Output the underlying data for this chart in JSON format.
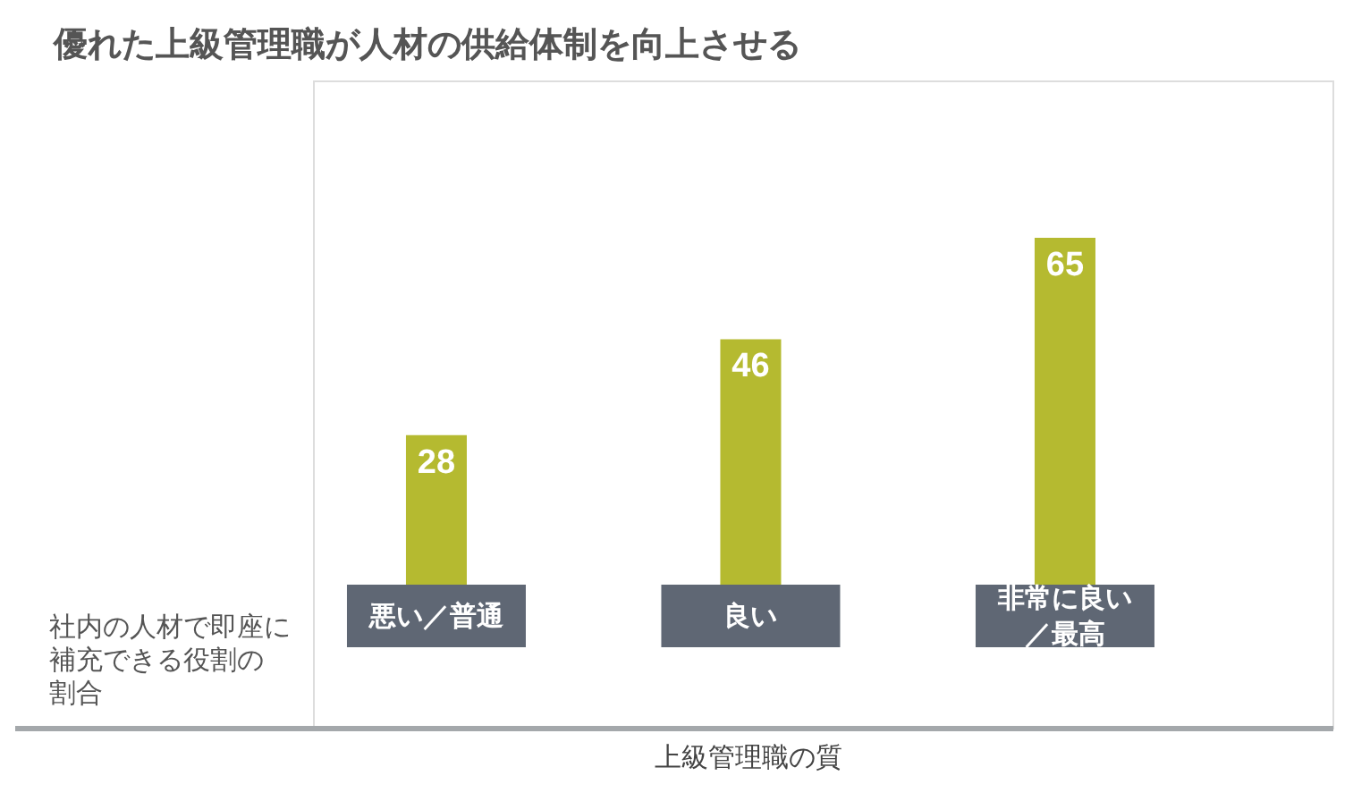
{
  "chart_data": {
    "type": "bar",
    "title": "優れた上級管理職が人材の供給体制を向上させる",
    "xlabel": "上級管理職の質",
    "ylabel": "社内の人材で即座に補充できる役割の割合",
    "categories": [
      "悪い／普通",
      "良い",
      "非常に良い／最高"
    ],
    "values": [
      28,
      46,
      65
    ],
    "color": "#b5ba30",
    "data_labels": true
  }
}
